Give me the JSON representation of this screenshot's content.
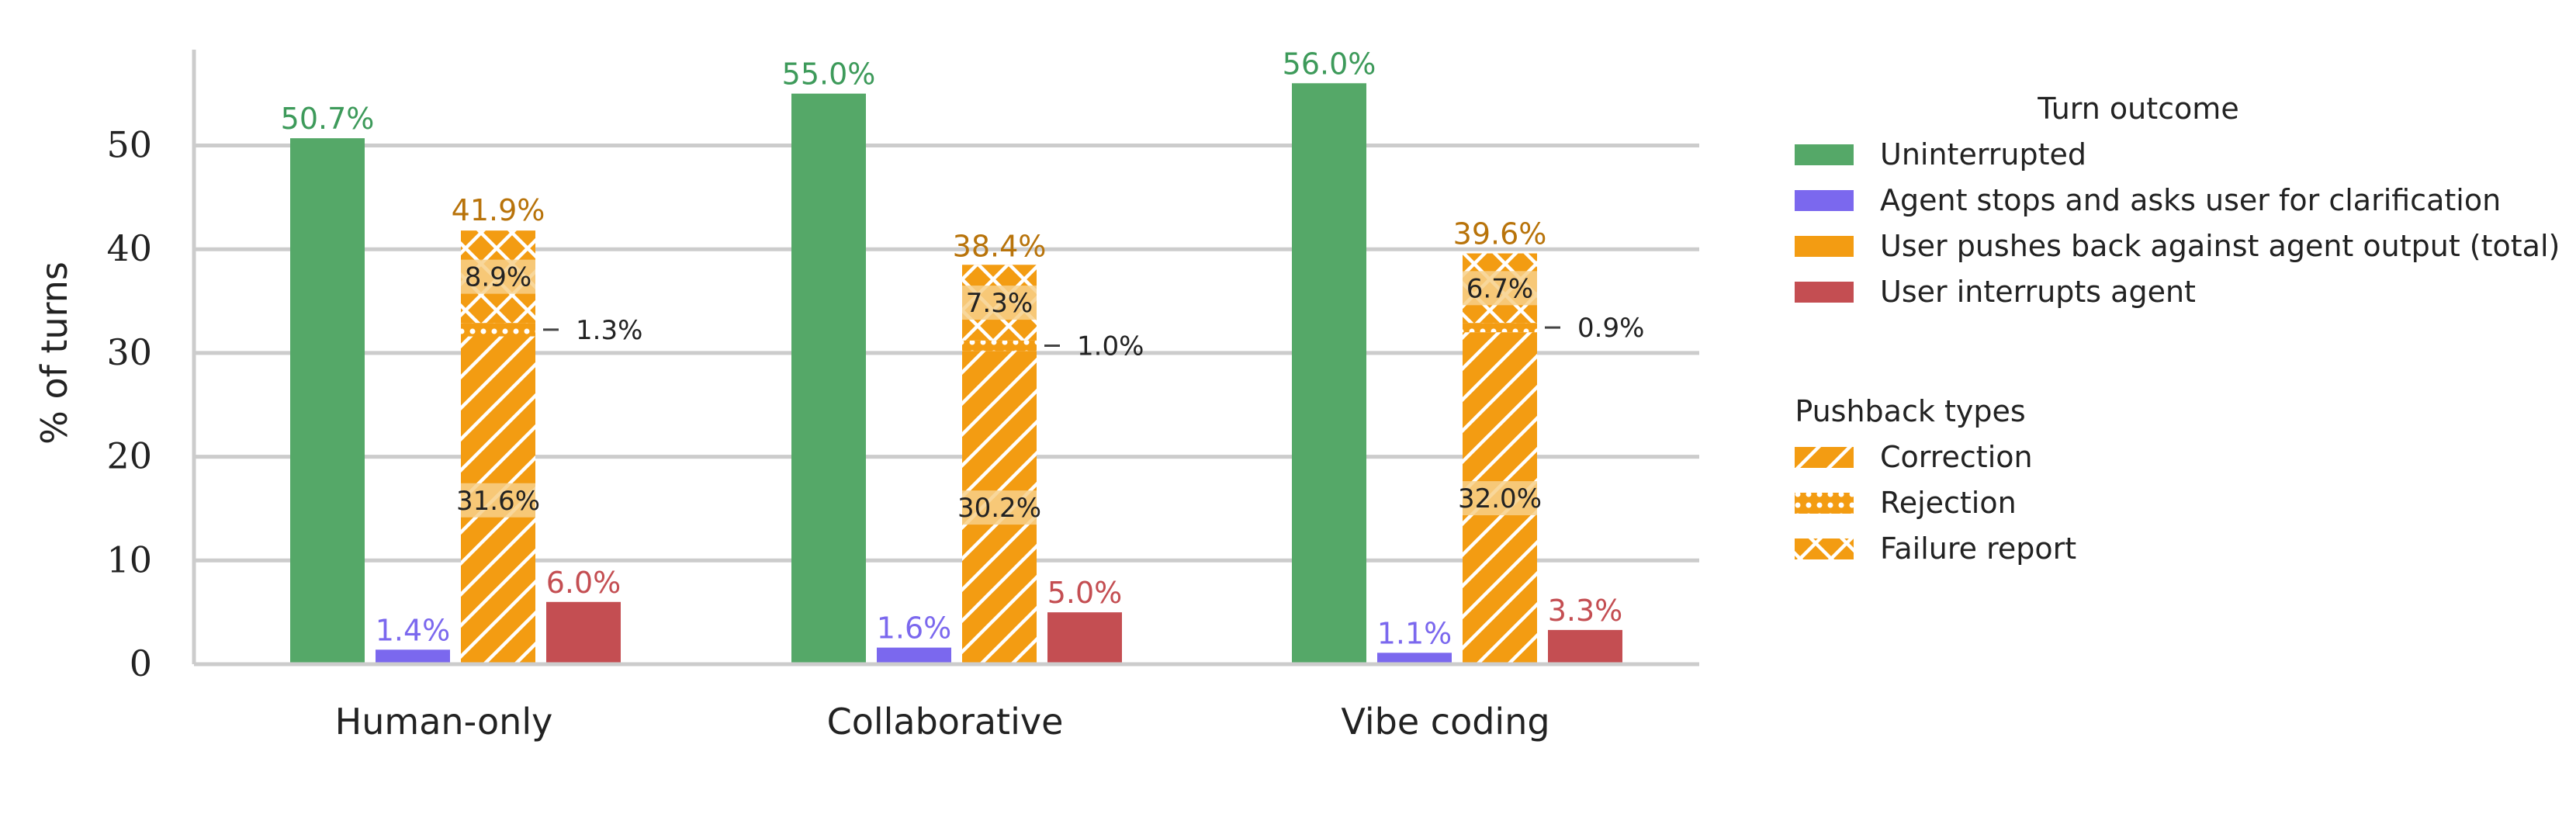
{
  "chart_data": {
    "type": "bar",
    "ylabel": "% of turns",
    "ylim": [
      0,
      59
    ],
    "yticks": [
      0,
      10,
      20,
      30,
      40,
      50
    ],
    "grid": "horizontal",
    "categories": [
      "Human-only",
      "Collaborative",
      "Vibe coding"
    ],
    "series": [
      {
        "name": "Uninterrupted",
        "values": [
          50.7,
          55.0,
          56.0
        ],
        "labels": [
          "50.7%",
          "55.0%",
          "56.0%"
        ],
        "color": "#55a868"
      },
      {
        "name": "Agent stops and asks user for clarification",
        "values": [
          1.4,
          1.6,
          1.1
        ],
        "labels": [
          "1.4%",
          "1.6%",
          "1.1%"
        ],
        "color": "#7b68ee"
      },
      {
        "name": "User pushes back against agent output (total)",
        "values": [
          41.9,
          38.4,
          39.6
        ],
        "labels": [
          "41.9%",
          "38.4%",
          "39.6%"
        ],
        "color": "#f39c12"
      },
      {
        "name": "User interrupts agent",
        "values": [
          6.0,
          5.0,
          3.3
        ],
        "labels": [
          "6.0%",
          "5.0%",
          "3.3%"
        ],
        "color": "#c44e52"
      }
    ],
    "pushback_breakdown": {
      "correction": {
        "values": [
          31.6,
          30.2,
          32.0
        ],
        "labels": [
          "31.6%",
          "30.2%",
          "32.0%"
        ]
      },
      "rejection": {
        "values": [
          1.3,
          1.0,
          0.9
        ],
        "labels": [
          "1.3%",
          "1.0%",
          "0.9%"
        ]
      },
      "failure_report": {
        "values": [
          8.9,
          7.3,
          6.7
        ],
        "labels": [
          "8.9%",
          "7.3%",
          "6.7%"
        ]
      }
    },
    "label_colors": {
      "uninterrupted": "#3d9a5a",
      "clarification": "#7b68ee",
      "pushback": "#b8730a",
      "interrupt": "#c44e52"
    },
    "legend": {
      "placement": "right",
      "outcome_title": "Turn outcome",
      "outcome_items": [
        "Uninterrupted",
        "Agent stops and asks user for clarification",
        "User pushes back against agent output (total)",
        "User interrupts agent"
      ],
      "pushback_title": "Pushback types",
      "pushback_items": [
        "Correction",
        "Rejection",
        "Failure report"
      ]
    }
  }
}
